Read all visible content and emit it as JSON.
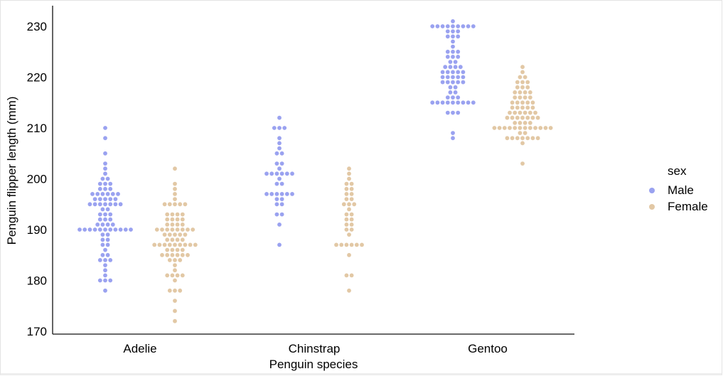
{
  "chart_data": {
    "type": "scatter",
    "subtype": "swarm",
    "title": "",
    "xlabel": "Penguin species",
    "ylabel": "Penguin flipper length (mm)",
    "categories": [
      "Adelie",
      "Chinstrap",
      "Gentoo"
    ],
    "ylim": [
      169,
      234
    ],
    "yticks": [
      170,
      180,
      190,
      200,
      210,
      220,
      230
    ],
    "grid": false,
    "legend": {
      "title": "sex",
      "placement": "right"
    },
    "series": [
      {
        "name": "Male",
        "color": "#9aa2f0",
        "data": {
          "Adelie": [
            178,
            180,
            180,
            180,
            181,
            182,
            183,
            184,
            184,
            184,
            185,
            185,
            186,
            187,
            187,
            188,
            188,
            189,
            189,
            190,
            190,
            190,
            190,
            190,
            190,
            190,
            190,
            190,
            190,
            190,
            191,
            191,
            191,
            191,
            192,
            192,
            192,
            193,
            193,
            193,
            194,
            194,
            195,
            195,
            195,
            195,
            195,
            195,
            195,
            196,
            196,
            196,
            196,
            196,
            197,
            197,
            197,
            197,
            197,
            197,
            198,
            198,
            198,
            199,
            199,
            199,
            200,
            200,
            201,
            202,
            203,
            205,
            208,
            210
          ],
          "Chinstrap": [
            187,
            191,
            193,
            193,
            195,
            195,
            196,
            196,
            197,
            197,
            197,
            197,
            197,
            197,
            199,
            199,
            200,
            201,
            201,
            201,
            201,
            201,
            201,
            202,
            203,
            203,
            205,
            205,
            206,
            207,
            208,
            210,
            210,
            210,
            212
          ],
          "Gentoo": [
            208,
            209,
            213,
            213,
            213,
            215,
            215,
            215,
            215,
            215,
            215,
            215,
            215,
            215,
            216,
            216,
            216,
            217,
            217,
            218,
            218,
            219,
            219,
            219,
            219,
            219,
            220,
            220,
            220,
            220,
            220,
            221,
            221,
            221,
            221,
            221,
            222,
            222,
            222,
            222,
            223,
            223,
            224,
            224,
            224,
            225,
            225,
            225,
            226,
            227,
            228,
            228,
            228,
            229,
            229,
            229,
            230,
            230,
            230,
            230,
            230,
            230,
            230,
            230,
            230,
            231
          ]
        }
      },
      {
        "name": "Female",
        "color": "#e2c8a5",
        "data": {
          "Adelie": [
            172,
            174,
            176,
            178,
            178,
            178,
            180,
            181,
            181,
            181,
            181,
            182,
            183,
            184,
            184,
            184,
            185,
            185,
            185,
            185,
            185,
            185,
            186,
            186,
            186,
            186,
            187,
            187,
            187,
            187,
            187,
            187,
            187,
            187,
            187,
            188,
            188,
            188,
            188,
            189,
            189,
            189,
            189,
            189,
            190,
            190,
            190,
            190,
            190,
            190,
            190,
            190,
            191,
            191,
            191,
            191,
            192,
            192,
            192,
            192,
            193,
            193,
            193,
            193,
            195,
            195,
            195,
            195,
            195,
            196,
            197,
            198,
            199,
            202
          ],
          "Chinstrap": [
            178,
            181,
            181,
            185,
            187,
            187,
            187,
            187,
            187,
            187,
            189,
            190,
            190,
            191,
            191,
            192,
            192,
            193,
            193,
            194,
            195,
            195,
            195,
            196,
            196,
            197,
            197,
            198,
            198,
            199,
            199,
            200,
            201,
            202
          ],
          "Gentoo": [
            203,
            207,
            208,
            208,
            208,
            208,
            208,
            208,
            208,
            209,
            209,
            210,
            210,
            210,
            210,
            210,
            210,
            210,
            210,
            210,
            210,
            210,
            210,
            211,
            211,
            211,
            211,
            212,
            212,
            212,
            212,
            212,
            212,
            212,
            213,
            213,
            213,
            213,
            213,
            213,
            214,
            214,
            214,
            214,
            214,
            215,
            215,
            215,
            215,
            215,
            216,
            216,
            216,
            216,
            217,
            217,
            217,
            217,
            218,
            218,
            218,
            219,
            219,
            219,
            220,
            220,
            221,
            222
          ]
        }
      }
    ]
  }
}
